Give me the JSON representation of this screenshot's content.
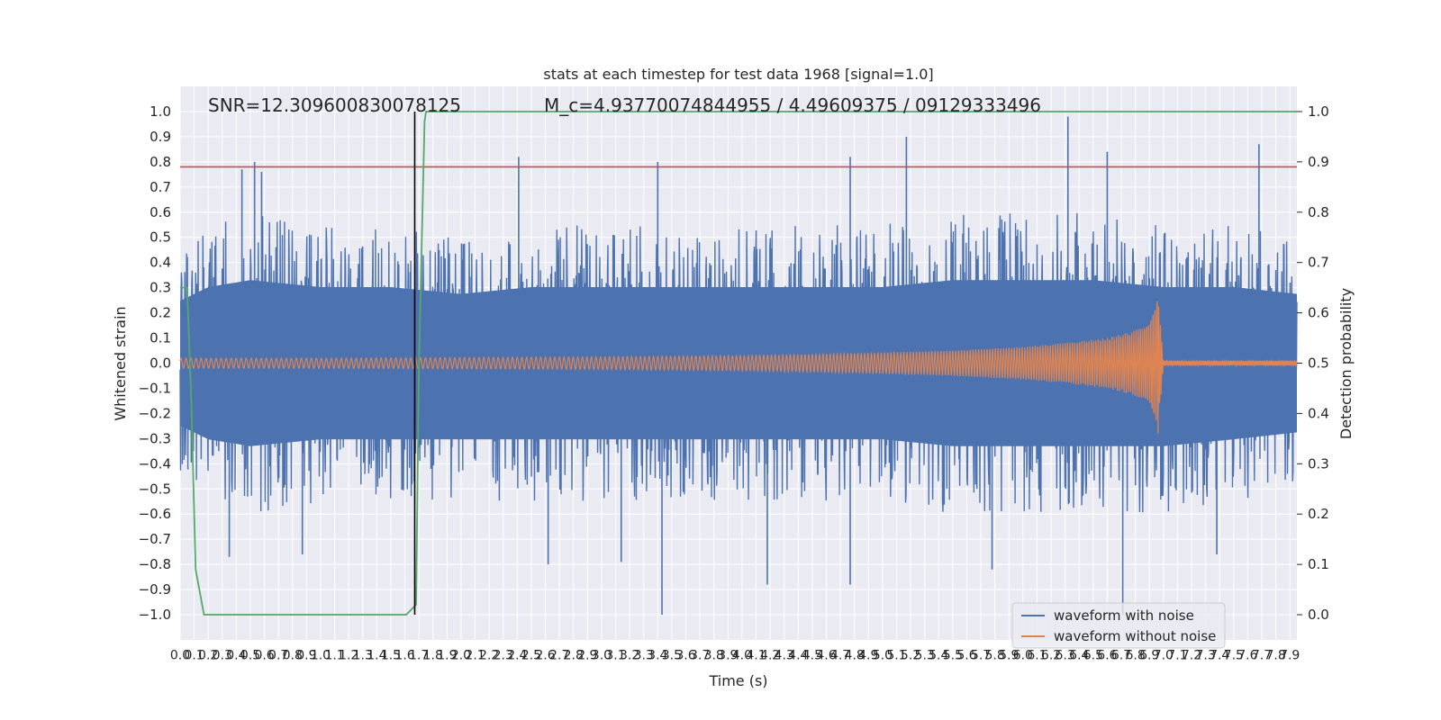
{
  "chart_data": {
    "type": "line",
    "title": "stats at each timestep for test data 1968 [signal=1.0]",
    "xlabel": "Time (s)",
    "ylabel": "Whitened strain",
    "y2label": "Detection probability",
    "xlim": [
      0.0,
      7.95
    ],
    "ylim": [
      -1.1,
      1.1
    ],
    "y2lim": [
      -0.05,
      1.05
    ],
    "x_ticks": [
      0.0,
      0.1,
      0.2,
      0.3,
      0.4,
      0.5,
      0.6,
      0.7,
      0.8,
      0.9,
      1.0,
      1.1,
      1.2,
      1.3,
      1.4,
      1.5,
      1.6,
      1.7,
      1.8,
      1.9,
      2.0,
      2.1,
      2.2,
      2.3,
      2.4,
      2.5,
      2.6,
      2.7,
      2.8,
      2.9,
      3.0,
      3.1,
      3.2,
      3.3,
      3.4,
      3.5,
      3.6,
      3.7,
      3.8,
      3.9,
      4.0,
      4.1,
      4.2,
      4.3,
      4.4,
      4.5,
      4.6,
      4.7,
      4.8,
      4.9,
      5.0,
      5.1,
      5.2,
      5.3,
      5.4,
      5.5,
      5.6,
      5.7,
      5.8,
      5.9,
      6.0,
      6.1,
      6.2,
      6.3,
      6.4,
      6.5,
      6.6,
      6.7,
      6.8,
      6.9,
      7.0,
      7.1,
      7.2,
      7.3,
      7.4,
      7.5,
      7.6,
      7.7,
      7.8,
      7.9
    ],
    "y_ticks": [
      -1.0,
      -0.9,
      -0.8,
      -0.7,
      -0.6,
      -0.5,
      -0.4,
      -0.3,
      -0.2,
      -0.1,
      0.0,
      0.1,
      0.2,
      0.3,
      0.4,
      0.5,
      0.6,
      0.7,
      0.8,
      0.9,
      1.0
    ],
    "y2_ticks": [
      0.0,
      0.1,
      0.2,
      0.3,
      0.4,
      0.5,
      0.6,
      0.7,
      0.8,
      0.9,
      1.0
    ],
    "annotations": {
      "snr": "SNR=12.309600830078125",
      "mc_overlap": "M_c=4.93770074844955 / 4.49609375 / 09129333496"
    },
    "threshold_y": 0.78,
    "marker_x": 1.67,
    "series": [
      {
        "name": "waveform with noise",
        "axis": "left",
        "color": "#4c72b0",
        "envelope": {
          "x": [
            0.0,
            0.2,
            0.5,
            1.0,
            1.5,
            2.0,
            2.5,
            3.0,
            3.5,
            4.0,
            4.5,
            5.0,
            5.5,
            6.0,
            6.5,
            7.0,
            7.5,
            7.95
          ],
          "upper": [
            0.45,
            0.55,
            0.6,
            0.55,
            0.55,
            0.5,
            0.55,
            0.55,
            0.55,
            0.55,
            0.55,
            0.55,
            0.6,
            0.6,
            0.6,
            0.55,
            0.55,
            0.5
          ],
          "lower": [
            -0.45,
            -0.55,
            -0.6,
            -0.55,
            -0.55,
            -0.55,
            -0.55,
            -0.55,
            -0.55,
            -0.55,
            -0.55,
            -0.55,
            -0.6,
            -0.6,
            -0.6,
            -0.6,
            -0.55,
            -0.5
          ]
        },
        "spikes": [
          {
            "x": 0.44,
            "y": 0.77
          },
          {
            "x": 0.53,
            "y": 0.8
          },
          {
            "x": 0.58,
            "y": 0.76
          },
          {
            "x": 0.35,
            "y": -0.77
          },
          {
            "x": 0.87,
            "y": -0.76
          },
          {
            "x": 2.41,
            "y": 0.82
          },
          {
            "x": 2.62,
            "y": -0.8
          },
          {
            "x": 3.14,
            "y": -0.79
          },
          {
            "x": 3.4,
            "y": 0.8
          },
          {
            "x": 3.43,
            "y": -1.0
          },
          {
            "x": 4.18,
            "y": -0.88
          },
          {
            "x": 4.77,
            "y": 0.82
          },
          {
            "x": 4.77,
            "y": -0.88
          },
          {
            "x": 5.17,
            "y": 0.9
          },
          {
            "x": 5.78,
            "y": -0.82
          },
          {
            "x": 6.32,
            "y": 0.98
          },
          {
            "x": 6.6,
            "y": 0.84
          },
          {
            "x": 6.71,
            "y": -1.0
          },
          {
            "x": 7.38,
            "y": -0.76
          },
          {
            "x": 7.68,
            "y": 0.87
          }
        ]
      },
      {
        "name": "waveform without noise",
        "axis": "left",
        "color": "#dd8452",
        "amplitude": {
          "x": [
            0.0,
            1.0,
            2.0,
            3.0,
            4.0,
            4.5,
            5.0,
            5.5,
            6.0,
            6.3,
            6.6,
            6.8,
            6.9,
            6.94,
            6.96,
            7.0,
            7.95
          ],
          "a": [
            0.02,
            0.02,
            0.022,
            0.025,
            0.03,
            0.035,
            0.042,
            0.05,
            0.065,
            0.08,
            0.1,
            0.13,
            0.17,
            0.24,
            0.29,
            0.01,
            0.01
          ]
        }
      },
      {
        "name": "",
        "axis": "right",
        "color": "#55a868",
        "x": [
          0.0,
          0.05,
          0.08,
          0.11,
          0.17,
          1.61,
          1.68,
          1.7,
          1.74,
          1.75,
          7.95
        ],
        "y": [
          0.65,
          0.65,
          0.42,
          0.09,
          0.0,
          0.0,
          0.02,
          0.5,
          0.98,
          1.0,
          1.0
        ]
      }
    ],
    "legend": {
      "placement": "lower right",
      "entries": [
        "waveform with noise",
        "waveform without noise"
      ]
    },
    "grid": true,
    "colors": {
      "background": "#eaeaf2",
      "grid": "#ffffff",
      "threshold": "#c44e52",
      "marker": "#000000"
    }
  }
}
